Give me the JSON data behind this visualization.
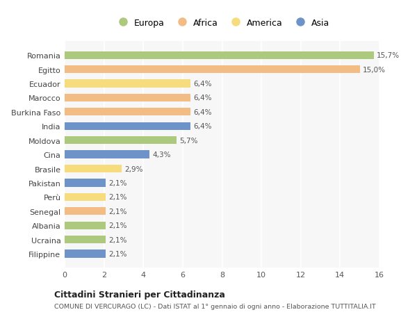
{
  "countries": [
    "Romania",
    "Egitto",
    "Ecuador",
    "Marocco",
    "Burkina Faso",
    "India",
    "Moldova",
    "Cina",
    "Brasile",
    "Pakistan",
    "Perù",
    "Senegal",
    "Albania",
    "Ucraina",
    "Filippine"
  ],
  "values": [
    15.7,
    15.0,
    6.4,
    6.4,
    6.4,
    6.4,
    5.7,
    4.3,
    2.9,
    2.1,
    2.1,
    2.1,
    2.1,
    2.1,
    2.1
  ],
  "labels": [
    "15,7%",
    "15,0%",
    "6,4%",
    "6,4%",
    "6,4%",
    "6,4%",
    "5,7%",
    "4,3%",
    "2,9%",
    "2,1%",
    "2,1%",
    "2,1%",
    "2,1%",
    "2,1%",
    "2,1%"
  ],
  "continents": [
    "Europa",
    "Africa",
    "America",
    "Africa",
    "Africa",
    "Asia",
    "Europa",
    "Asia",
    "America",
    "Asia",
    "America",
    "Africa",
    "Europa",
    "Europa",
    "Asia"
  ],
  "colors": {
    "Europa": "#adc97e",
    "Africa": "#f2bc84",
    "America": "#f7dc7e",
    "Asia": "#6e93c8"
  },
  "legend_order": [
    "Europa",
    "Africa",
    "America",
    "Asia"
  ],
  "xlim": [
    0,
    16
  ],
  "xticks": [
    0,
    2,
    4,
    6,
    8,
    10,
    12,
    14,
    16
  ],
  "title": "Cittadini Stranieri per Cittadinanza",
  "subtitle": "COMUNE DI VERCURAGO (LC) - Dati ISTAT al 1° gennaio di ogni anno - Elaborazione TUTTITALIA.IT",
  "bg_color": "#ffffff",
  "plot_bg_color": "#f7f7f7",
  "grid_color": "#ffffff",
  "bar_height": 0.55
}
